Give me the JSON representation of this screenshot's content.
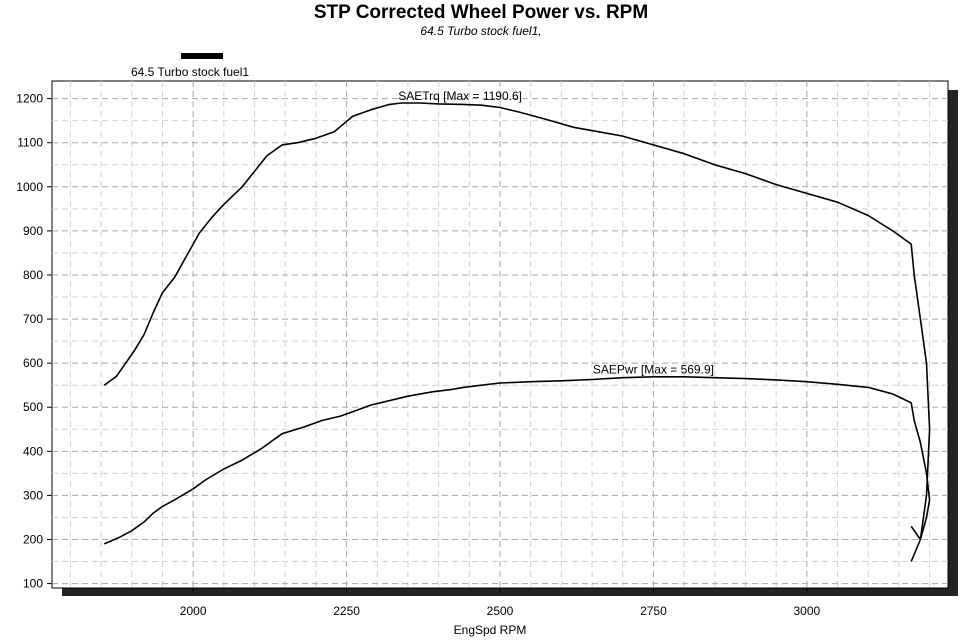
{
  "chart_data": {
    "type": "line",
    "title": "STP Corrected Wheel Power vs. RPM",
    "subtitle": "64.5 Turbo stock fuel1,",
    "legend": {
      "entries": [
        "64.5 Turbo stock fuel1"
      ],
      "placement": "top-left"
    },
    "xlabel": "EngSpd RPM",
    "ylabel": "",
    "xlim": [
      1770,
      3230
    ],
    "ylim": [
      90,
      1240
    ],
    "xticks": [
      2000,
      2250,
      2500,
      2750,
      3000
    ],
    "yticks": [
      100,
      200,
      300,
      400,
      500,
      600,
      700,
      800,
      900,
      1000,
      1100,
      1200
    ],
    "grid": true,
    "annotations": [
      {
        "text": "SAETrq [Max = 1190.6]",
        "x": 2435,
        "y": 1190.6
      },
      {
        "text": "SAEPwr [Max = 569.9]",
        "x": 2750,
        "y": 569.9
      }
    ],
    "series": [
      {
        "name": "SAETrq",
        "x": [
          1855,
          1875,
          1890,
          1905,
          1920,
          1935,
          1950,
          1970,
          1990,
          2010,
          2030,
          2050,
          2080,
          2100,
          2120,
          2145,
          2170,
          2200,
          2230,
          2260,
          2290,
          2320,
          2340,
          2370,
          2400,
          2440,
          2470,
          2500,
          2530,
          2570,
          2620,
          2660,
          2700,
          2750,
          2800,
          2850,
          2900,
          2950,
          3000,
          3050,
          3100,
          3140,
          3170,
          3175,
          3185,
          3195,
          3200,
          3195,
          3185,
          3170
        ],
        "y": [
          550,
          570,
          600,
          630,
          665,
          715,
          760,
          795,
          845,
          895,
          930,
          960,
          1000,
          1035,
          1070,
          1095,
          1100,
          1110,
          1125,
          1160,
          1175,
          1187,
          1190,
          1190,
          1188,
          1187,
          1185,
          1180,
          1170,
          1155,
          1135,
          1125,
          1115,
          1095,
          1075,
          1050,
          1030,
          1005,
          985,
          965,
          935,
          900,
          870,
          800,
          700,
          600,
          450,
          300,
          200,
          150
        ]
      },
      {
        "name": "SAEPwr",
        "x": [
          1855,
          1880,
          1900,
          1920,
          1935,
          1950,
          1970,
          2000,
          2020,
          2050,
          2080,
          2110,
          2145,
          2180,
          2210,
          2240,
          2260,
          2290,
          2320,
          2350,
          2390,
          2420,
          2440,
          2470,
          2500,
          2550,
          2600,
          2650,
          2700,
          2750,
          2800,
          2850,
          2900,
          2950,
          3000,
          3050,
          3100,
          3140,
          3170,
          3175,
          3185,
          3195,
          3200,
          3195,
          3185,
          3170
        ],
        "y": [
          190,
          205,
          220,
          240,
          260,
          275,
          290,
          315,
          335,
          360,
          380,
          405,
          440,
          455,
          470,
          480,
          490,
          505,
          515,
          525,
          535,
          540,
          545,
          550,
          555,
          558,
          560,
          563,
          567,
          569,
          569,
          567,
          565,
          562,
          558,
          552,
          545,
          530,
          510,
          470,
          420,
          350,
          290,
          250,
          200,
          230
        ]
      }
    ]
  }
}
